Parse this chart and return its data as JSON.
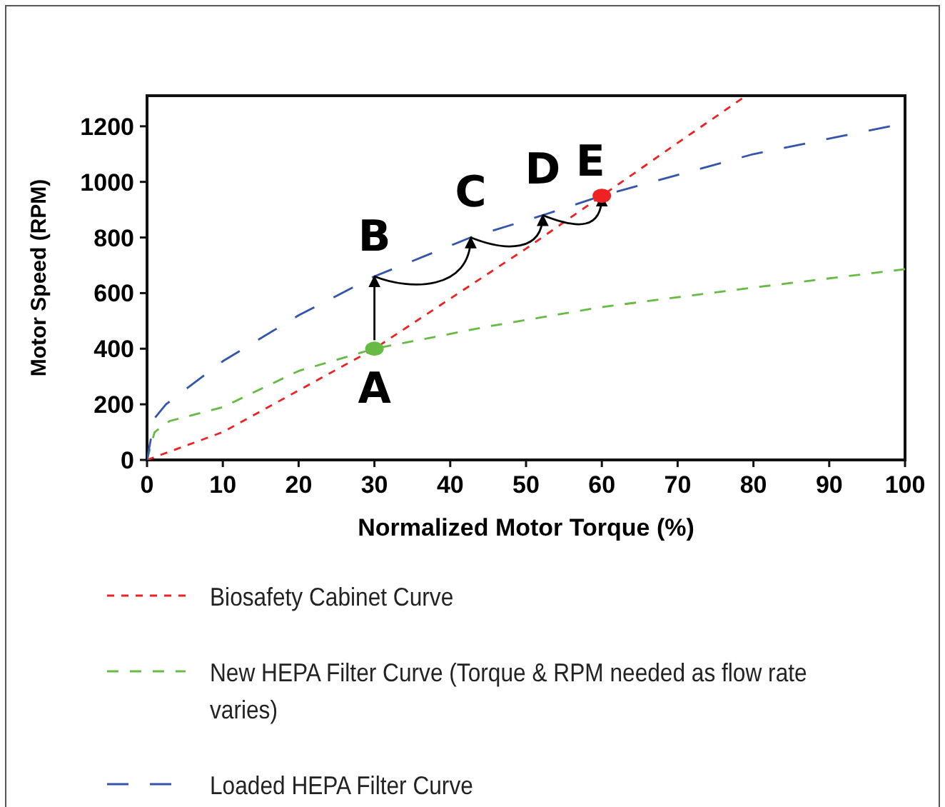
{
  "chart_data": {
    "type": "line",
    "xlabel": "Normalized Motor Torque (%)",
    "ylabel": "Motor Speed (RPM)",
    "xlim": [
      0,
      100
    ],
    "ylim": [
      0,
      1310
    ],
    "xticks": [
      0,
      10,
      20,
      30,
      40,
      50,
      60,
      70,
      80,
      90,
      100
    ],
    "yticks": [
      0,
      200,
      400,
      600,
      800,
      1000,
      1200
    ],
    "grid": false,
    "legend": "bottom",
    "line_style": "dashed",
    "marker": "none",
    "series": [
      {
        "name": "Biosafety Cabinet Curve",
        "color": "#ee2222",
        "x": [
          0,
          10,
          20,
          30,
          40,
          50,
          60,
          70,
          78.5
        ],
        "values": [
          0,
          100,
          250,
          400,
          580,
          760,
          950,
          1140,
          1300
        ]
      },
      {
        "name": "New HEPA Filter Curve (Torque & RPM needed as flow rate varies)",
        "color": "#66bb44",
        "x": [
          0,
          1,
          3,
          10,
          20,
          30,
          45,
          60,
          80,
          100
        ],
        "values": [
          0,
          100,
          140,
          190,
          320,
          400,
          480,
          550,
          620,
          686
        ]
      },
      {
        "name": "Loaded HEPA Filter Curve",
        "color": "#3355aa",
        "x": [
          0,
          1,
          2.5,
          10,
          20,
          30,
          42.7,
          52.2,
          60,
          80,
          98
        ],
        "values": [
          0,
          150,
          200,
          355,
          520,
          660,
          800,
          880,
          950,
          1100,
          1200
        ]
      },
      {
        "type": "scatter",
        "color": "#66bb44",
        "x": [
          30
        ],
        "values": [
          400
        ],
        "marker": "circle"
      },
      {
        "type": "scatter",
        "color": "#ee2222",
        "x": [
          60
        ],
        "values": [
          950
        ],
        "marker": "circle"
      }
    ],
    "annotations": [
      {
        "text": "A",
        "x": 30,
        "y": 400
      },
      {
        "text": "B",
        "x": 30,
        "y": 660
      },
      {
        "text": "C",
        "x": 42.7,
        "y": 800
      },
      {
        "text": "D",
        "x": 52.2,
        "y": 880
      },
      {
        "text": "E",
        "x": 60,
        "y": 950
      }
    ]
  }
}
